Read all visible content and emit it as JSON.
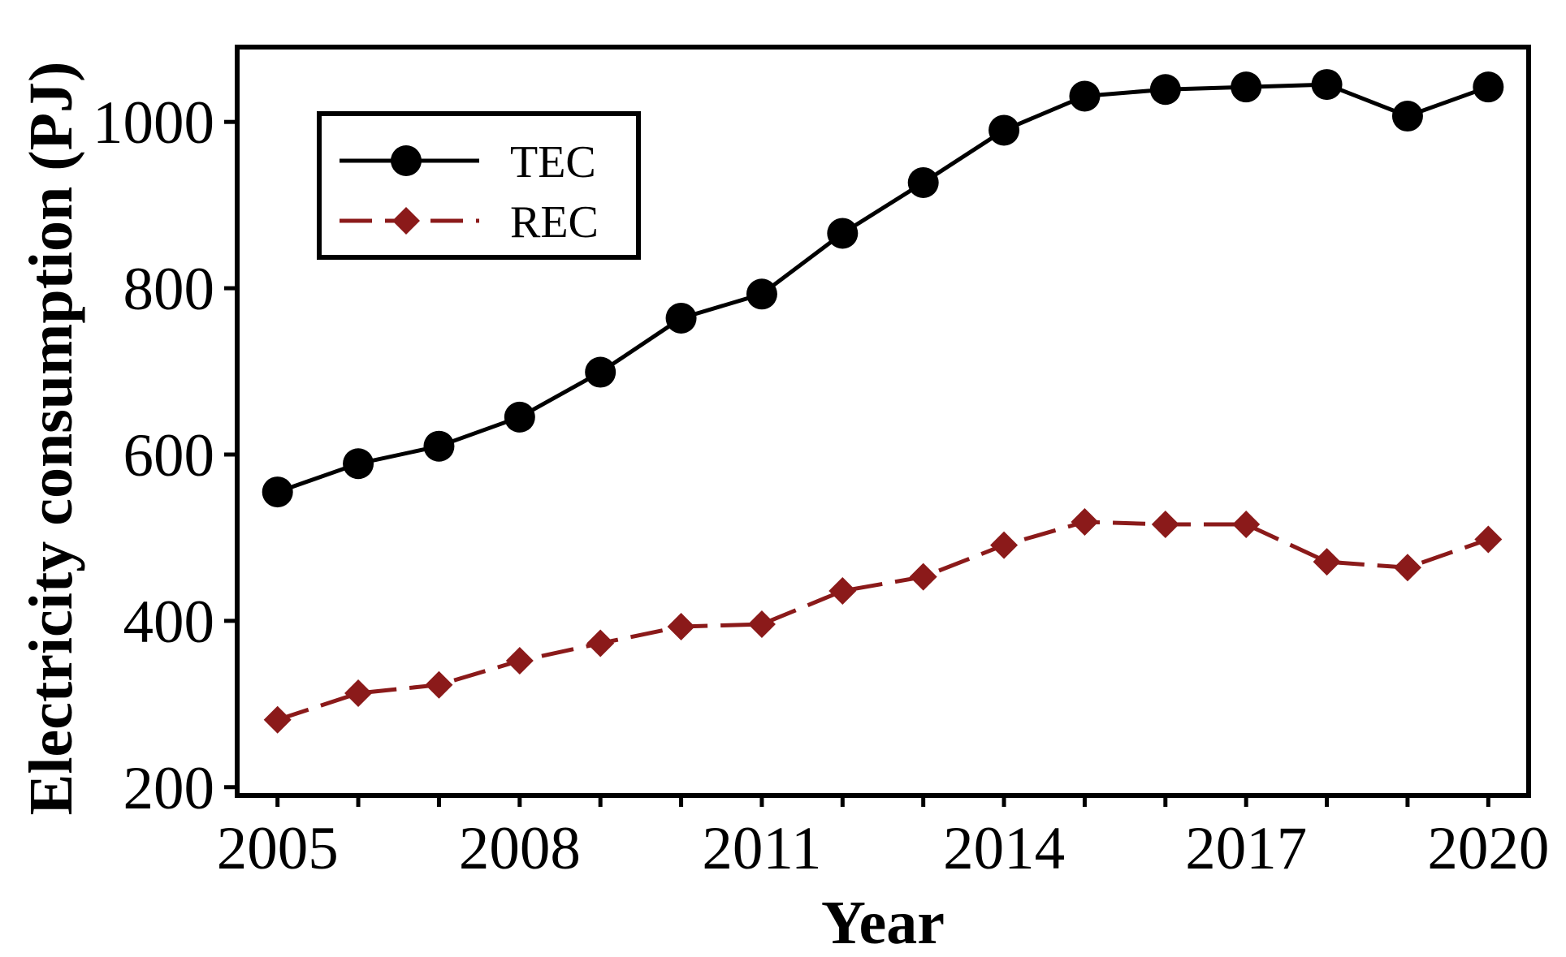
{
  "chart_data": {
    "type": "line",
    "x": [
      2005,
      2006,
      2007,
      2008,
      2009,
      2010,
      2011,
      2012,
      2013,
      2014,
      2015,
      2016,
      2017,
      2018,
      2019,
      2020
    ],
    "series": [
      {
        "name": "TEC",
        "values": [
          555,
          589,
          610,
          645,
          699,
          764,
          793,
          866,
          927,
          990,
          1031,
          1039,
          1042,
          1045,
          1007,
          1042
        ],
        "color": "#000000",
        "line_style": "solid",
        "marker": "circle"
      },
      {
        "name": "REC",
        "values": [
          281,
          313,
          323,
          352,
          373,
          393,
          396,
          436,
          453,
          491,
          519,
          516,
          516,
          471,
          464,
          498
        ],
        "color": "#8b1a1a",
        "line_style": "dashed",
        "marker": "diamond"
      }
    ],
    "xlabel": "Year",
    "ylabel": "Electricity consumption (PJ)",
    "xlim": [
      2004.5,
      2020.5
    ],
    "ylim": [
      190,
      1090
    ],
    "x_ticks": [
      2005,
      2008,
      2011,
      2014,
      2017,
      2020
    ],
    "x_tick_labels": [
      "2005",
      "2008",
      "2011",
      "2014",
      "2017",
      "2020"
    ],
    "y_ticks": [
      200,
      400,
      600,
      800,
      1000
    ],
    "y_tick_labels": [
      "200",
      "400",
      "600",
      "800",
      "1000"
    ],
    "grid": false,
    "legend_position": "top-left"
  }
}
